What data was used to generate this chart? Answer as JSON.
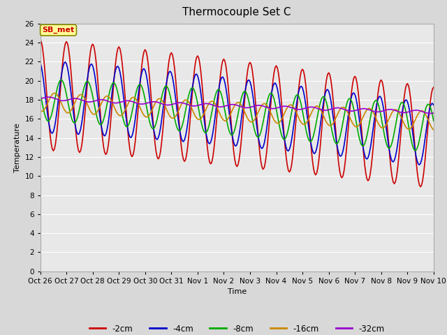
{
  "title": "Thermocouple Set C",
  "xlabel": "Time",
  "ylabel": "Temperature",
  "ylim": [
    0,
    26
  ],
  "yticks": [
    0,
    2,
    4,
    6,
    8,
    10,
    12,
    14,
    16,
    18,
    20,
    22,
    24,
    26
  ],
  "x_tick_labels": [
    "Oct 26",
    "Oct 27",
    "Oct 28",
    "Oct 29",
    "Oct 30",
    "Oct 31",
    "Nov 1",
    "Nov 2",
    "Nov 3",
    "Nov 4",
    "Nov 5",
    "Nov 6",
    "Nov 7",
    "Nov 8",
    "Nov 9",
    "Nov 10"
  ],
  "series": {
    "-2cm": {
      "color": "#cc0000",
      "lw": 1.2
    },
    "-4cm": {
      "color": "#0000cc",
      "lw": 1.2
    },
    "-8cm": {
      "color": "#00aa00",
      "lw": 1.2
    },
    "-16cm": {
      "color": "#cc8800",
      "lw": 1.2
    },
    "-32cm": {
      "color": "#9900cc",
      "lw": 1.2
    }
  },
  "annotation_text": "SB_met",
  "bg_color": "#d8d8d8",
  "plot_bg_color": "#e8e8e8",
  "grid_color": "#ffffff",
  "title_fontsize": 11,
  "tick_fontsize": 7.5,
  "label_fontsize": 8
}
